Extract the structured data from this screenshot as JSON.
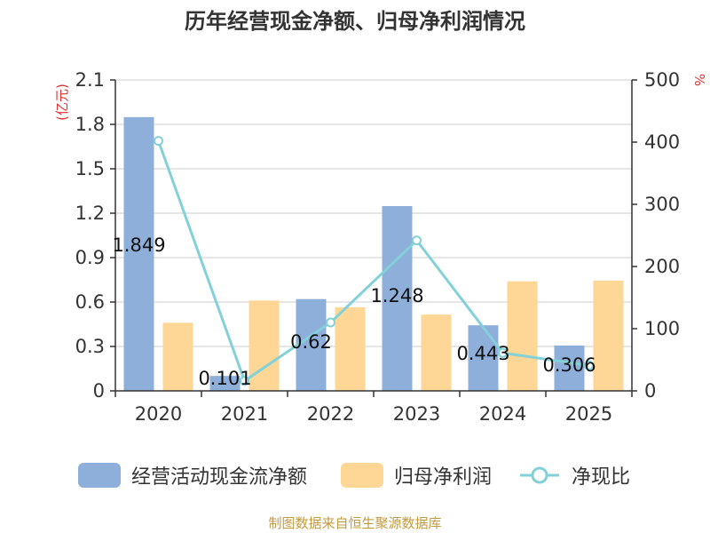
{
  "title": "历年经营现金净额、归母净利润情况",
  "colors": {
    "bar1": "#8fafdb",
    "bar2": "#fed695",
    "line": "#82d1d8",
    "axis": "#333333",
    "grid": "#cccccc",
    "unit": "#e03030",
    "source": "#c29a3e"
  },
  "legend": [
    {
      "label": "经营活动现金流净额",
      "kind": "bar",
      "color": "#8fafdb"
    },
    {
      "label": "归母净利润",
      "kind": "bar",
      "color": "#fed695"
    },
    {
      "label": "净现比",
      "kind": "line",
      "color": "#82d1d8"
    }
  ],
  "source": "制图数据来自恒生聚源数据库",
  "chart_data": {
    "type": "bar",
    "title": "历年经营现金净额、归母净利润情况",
    "categories": [
      "2020",
      "2021",
      "2022",
      "2023",
      "2024",
      "2025"
    ],
    "left_axis": {
      "unit": "(亿元)",
      "ylim": [
        0,
        2.1
      ],
      "ticks": [
        "0",
        "0.3",
        "0.6",
        "0.9",
        "1.2",
        "1.5",
        "1.8",
        "2.1"
      ],
      "tick_values": [
        0,
        0.3,
        0.6,
        0.9,
        1.2,
        1.5,
        1.8,
        2.1
      ]
    },
    "right_axis": {
      "unit": "%",
      "ylim": [
        0,
        500
      ],
      "ticks": [
        "0",
        "100",
        "200",
        "300",
        "400",
        "500"
      ],
      "tick_values": [
        0,
        100,
        200,
        300,
        400,
        500
      ]
    },
    "series": [
      {
        "name": "经营活动现金流净额",
        "type": "bar",
        "axis": "left",
        "values": [
          1.849,
          0.101,
          0.62,
          1.248,
          0.443,
          0.306
        ],
        "labels": [
          "1.849",
          "0.101",
          "0.62",
          "1.248",
          "0.443",
          "0.306"
        ]
      },
      {
        "name": "归母净利润",
        "type": "bar",
        "axis": "left",
        "values": [
          0.46,
          0.61,
          0.565,
          0.515,
          0.74,
          0.745
        ]
      },
      {
        "name": "净现比",
        "type": "line",
        "axis": "right",
        "values": [
          402,
          16,
          110,
          242,
          61,
          41
        ]
      }
    ],
    "grid": true,
    "legend_position": "bottom"
  }
}
